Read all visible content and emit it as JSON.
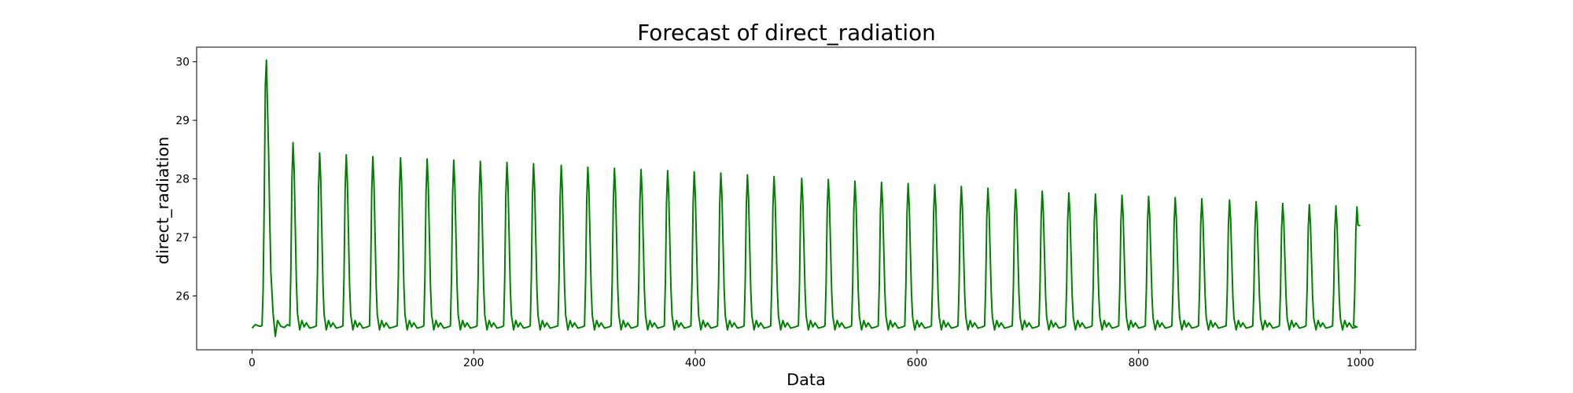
{
  "chart_data": {
    "type": "line",
    "title": "Forecast of direct_radiation",
    "xlabel": "Data",
    "ylabel": "direct_radiation",
    "xlim": [
      -50,
      1050
    ],
    "ylim": [
      25.08,
      30.25
    ],
    "xticks": [
      0,
      200,
      400,
      600,
      800,
      1000
    ],
    "yticks": [
      26,
      27,
      28,
      29,
      30
    ],
    "grid": false,
    "legend": "none",
    "series": [
      {
        "color": "#008000",
        "period": 24,
        "x_range": [
          0,
          1000
        ],
        "baseline": 25.45,
        "first_peak": {
          "x": 13,
          "y": 30.03
        },
        "peaks": [
          [
            37,
            28.62
          ],
          [
            61,
            28.44
          ],
          [
            85,
            28.41
          ],
          [
            109,
            28.38
          ],
          [
            134,
            28.36
          ],
          [
            158,
            28.34
          ],
          [
            182,
            28.32
          ],
          [
            206,
            28.3
          ],
          [
            230,
            28.28
          ],
          [
            254,
            28.26
          ],
          [
            279,
            28.23
          ],
          [
            303,
            28.2
          ],
          [
            327,
            28.18
          ],
          [
            351,
            28.16
          ],
          [
            375,
            28.14
          ],
          [
            399,
            28.12
          ],
          [
            423,
            28.1
          ],
          [
            447,
            28.07
          ],
          [
            471,
            28.04
          ],
          [
            496,
            28.01
          ],
          [
            520,
            27.99
          ],
          [
            544,
            27.96
          ],
          [
            568,
            27.94
          ],
          [
            592,
            27.92
          ],
          [
            616,
            27.9
          ],
          [
            640,
            27.87
          ],
          [
            664,
            27.84
          ],
          [
            689,
            27.82
          ],
          [
            713,
            27.79
          ],
          [
            737,
            27.76
          ],
          [
            761,
            27.74
          ],
          [
            785,
            27.72
          ],
          [
            809,
            27.7
          ],
          [
            833,
            27.68
          ],
          [
            857,
            27.66
          ],
          [
            882,
            27.64
          ],
          [
            906,
            27.61
          ],
          [
            930,
            27.58
          ],
          [
            954,
            27.56
          ],
          [
            978,
            27.54
          ],
          [
            997,
            27.52
          ]
        ],
        "first_trough": {
          "x": 21,
          "y": 25.31
        },
        "end": {
          "x": 1000,
          "y": 27.2
        }
      }
    ]
  }
}
